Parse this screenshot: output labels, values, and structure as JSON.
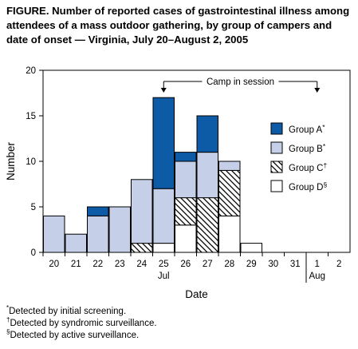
{
  "title": "FIGURE. Number of reported cases of gastrointestinal illness among attendees of a mass outdoor gathering, by group of campers and date of onset — Virginia, July 20–August 2, 2005",
  "colors": {
    "group_a": "#0d5aa7",
    "group_b": "#c5cfe8",
    "group_c": "hatch",
    "group_d": "#ffffff"
  },
  "chart_data": {
    "type": "bar",
    "stacked": true,
    "categories": [
      "20",
      "21",
      "22",
      "23",
      "24",
      "25",
      "26",
      "27",
      "28",
      "29",
      "30",
      "31",
      "1",
      "2"
    ],
    "month_labels": [
      {
        "label": "Jul",
        "category": "25"
      },
      {
        "label": "Aug",
        "category": "1"
      }
    ],
    "series": [
      {
        "name": "Group D",
        "marker": "§",
        "values": [
          0,
          0,
          0,
          0,
          0,
          1,
          3,
          0,
          4,
          1,
          0,
          0,
          0,
          0
        ]
      },
      {
        "name": "Group C",
        "marker": "†",
        "values": [
          0,
          0,
          0,
          0,
          1,
          0,
          3,
          6,
          5,
          0,
          0,
          0,
          0,
          0
        ]
      },
      {
        "name": "Group B",
        "marker": "*",
        "values": [
          4,
          2,
          4,
          5,
          7,
          6,
          4,
          5,
          1,
          0,
          0,
          0,
          0,
          0
        ]
      },
      {
        "name": "Group A",
        "marker": "*",
        "values": [
          0,
          0,
          1,
          0,
          0,
          10,
          1,
          4,
          0,
          0,
          0,
          0,
          0,
          0
        ]
      }
    ],
    "legend_order": [
      "Group A",
      "Group B",
      "Group C",
      "Group D"
    ],
    "legend_position": "right",
    "xlabel": "Date",
    "ylabel": "Number",
    "ylim": [
      0,
      20
    ],
    "yticks": [
      0,
      5,
      10,
      15,
      20
    ],
    "grid": false,
    "annotation": {
      "text": "Camp in session",
      "from": "25",
      "to": "1"
    }
  },
  "footnotes": [
    {
      "symbol": "*",
      "text": "Detected by initial screening."
    },
    {
      "symbol": "†",
      "text": "Detected by syndromic surveillance."
    },
    {
      "symbol": "§",
      "text": "Detected by active surveillance."
    }
  ]
}
